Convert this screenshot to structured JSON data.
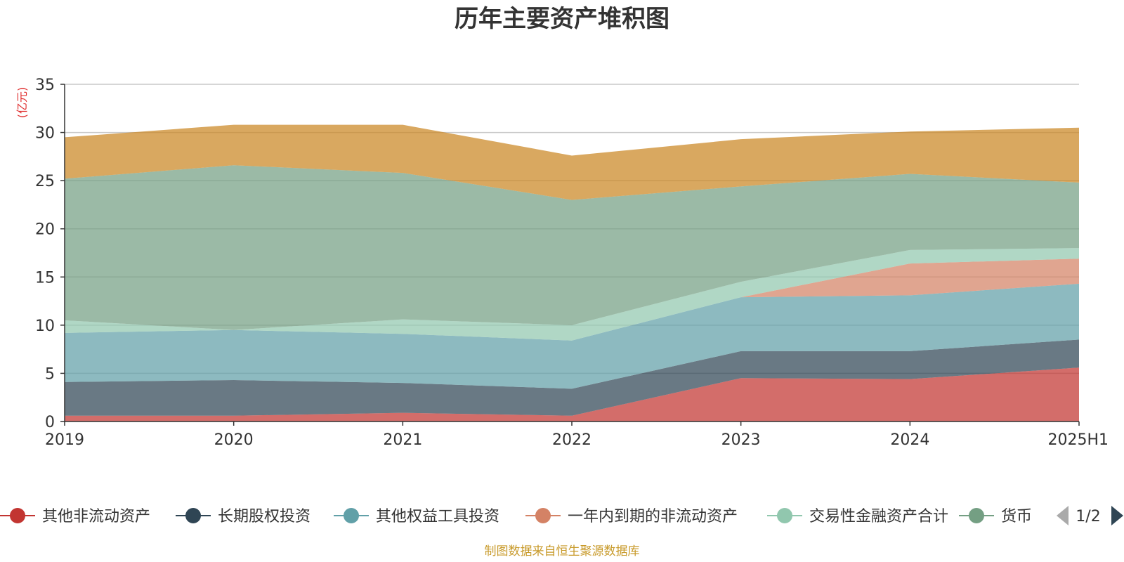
{
  "chart_data": {
    "type": "area",
    "stacked": true,
    "title": "历年主要资产堆积图",
    "unit_label": "(亿元)",
    "categories": [
      "2019",
      "2020",
      "2021",
      "2022",
      "2023",
      "2024",
      "2025H1"
    ],
    "y_ticks": [
      0,
      5,
      10,
      15,
      20,
      25,
      30,
      35
    ],
    "ylim": [
      0,
      35
    ],
    "grid": true,
    "legend_position": "bottom",
    "series": [
      {
        "name": "其他非流动资产",
        "color": "#c23531",
        "values": [
          0.6,
          0.6,
          0.9,
          0.6,
          4.5,
          4.4,
          5.6
        ]
      },
      {
        "name": "长期股权投资",
        "color": "#2f4554",
        "values": [
          3.5,
          3.7,
          3.1,
          2.8,
          2.8,
          2.9,
          2.9
        ]
      },
      {
        "name": "其他权益工具投资",
        "color": "#61a0a8",
        "values": [
          5.1,
          5.2,
          5.1,
          5.0,
          5.6,
          5.8,
          5.8
        ]
      },
      {
        "name": "一年内到期的非流动资产",
        "color": "#d48265",
        "values": [
          0,
          0,
          0,
          0,
          0,
          3.3,
          2.6
        ]
      },
      {
        "name": "交易性金融资产合计",
        "color": "#91c7ae",
        "values": [
          1.3,
          0,
          1.5,
          1.6,
          1.6,
          1.4,
          1.1
        ]
      },
      {
        "name": "货币资金",
        "color": "#749f83",
        "values": [
          14.7,
          17.1,
          15.2,
          13.0,
          9.9,
          7.9,
          6.8
        ]
      },
      {
        "name": "",
        "color": "#ca8622",
        "values": [
          4.3,
          4.2,
          5.0,
          4.6,
          4.9,
          4.4,
          5.7
        ]
      }
    ]
  },
  "legend": {
    "visible_items": [
      {
        "label": "其他非流动资产",
        "color": "#c23531"
      },
      {
        "label": "长期股权投资",
        "color": "#2f4554"
      },
      {
        "label": "其他权益工具投资",
        "color": "#61a0a8"
      },
      {
        "label": "一年内到期的非流动资产",
        "color": "#d48265"
      },
      {
        "label": "交易性金融资产合计",
        "color": "#91c7ae"
      },
      {
        "label": "货币",
        "color": "#749f83"
      }
    ],
    "page_indicator": "1/2",
    "prev_icon": "triangle-left-icon",
    "next_icon": "triangle-right-icon"
  },
  "source_note": "制图数据来自恒生聚源数据库"
}
